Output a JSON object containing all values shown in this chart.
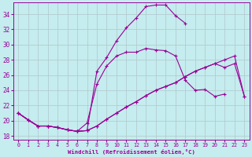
{
  "xlabel": "Windchill (Refroidissement éolien,°C)",
  "bg_color": "#c5ecee",
  "line_color": "#990099",
  "grid_color": "#b0c8cc",
  "xlim": [
    -0.5,
    23.5
  ],
  "ylim": [
    17.5,
    35.5
  ],
  "xticks": [
    0,
    1,
    2,
    3,
    4,
    5,
    6,
    7,
    8,
    9,
    10,
    11,
    12,
    13,
    14,
    15,
    16,
    17,
    18,
    19,
    20,
    21,
    22,
    23
  ],
  "yticks": [
    18,
    20,
    22,
    24,
    26,
    28,
    30,
    32,
    34
  ],
  "s1_x": [
    0,
    1,
    2,
    3,
    4,
    5,
    6,
    7,
    8,
    9,
    10,
    11,
    12,
    13,
    14,
    15,
    16,
    17
  ],
  "s1_y": [
    21.0,
    20.1,
    19.3,
    19.3,
    19.1,
    18.8,
    18.6,
    18.7,
    26.5,
    28.3,
    30.5,
    32.2,
    33.5,
    35.0,
    35.2,
    35.2,
    33.8,
    32.8
  ],
  "s2_x": [
    0,
    1,
    2,
    3,
    4,
    5,
    6,
    7,
    8,
    9,
    10,
    11,
    12,
    13,
    14,
    15,
    16,
    17,
    18,
    19,
    20,
    21
  ],
  "s2_y": [
    21.0,
    20.1,
    19.3,
    19.3,
    19.1,
    18.8,
    18.6,
    19.7,
    24.8,
    27.2,
    28.5,
    29.0,
    29.0,
    29.5,
    29.3,
    29.2,
    28.5,
    25.3,
    24.0,
    24.1,
    23.2,
    23.5
  ],
  "s3_x": [
    0,
    1,
    2,
    3,
    4,
    5,
    6,
    7,
    8,
    9,
    10,
    11,
    12,
    13,
    14,
    15,
    16,
    17,
    18,
    19,
    20,
    21,
    22,
    23
  ],
  "s3_y": [
    21.0,
    20.1,
    19.3,
    19.3,
    19.1,
    18.8,
    18.6,
    18.7,
    19.3,
    20.2,
    21.0,
    21.8,
    22.5,
    23.3,
    24.0,
    24.5,
    25.0,
    25.8,
    26.5,
    27.0,
    27.5,
    28.0,
    28.5,
    23.2
  ],
  "s4_x": [
    0,
    2,
    3,
    4,
    5,
    6,
    7,
    8,
    9,
    10,
    11,
    12,
    13,
    14,
    15,
    16,
    17,
    18,
    19,
    20,
    21,
    22,
    23
  ],
  "s4_y": [
    21.0,
    19.3,
    19.3,
    19.1,
    18.8,
    18.6,
    18.7,
    19.3,
    20.2,
    21.0,
    21.8,
    22.5,
    23.3,
    24.0,
    24.5,
    25.0,
    25.8,
    26.5,
    27.0,
    27.5,
    27.0,
    27.5,
    23.2
  ]
}
